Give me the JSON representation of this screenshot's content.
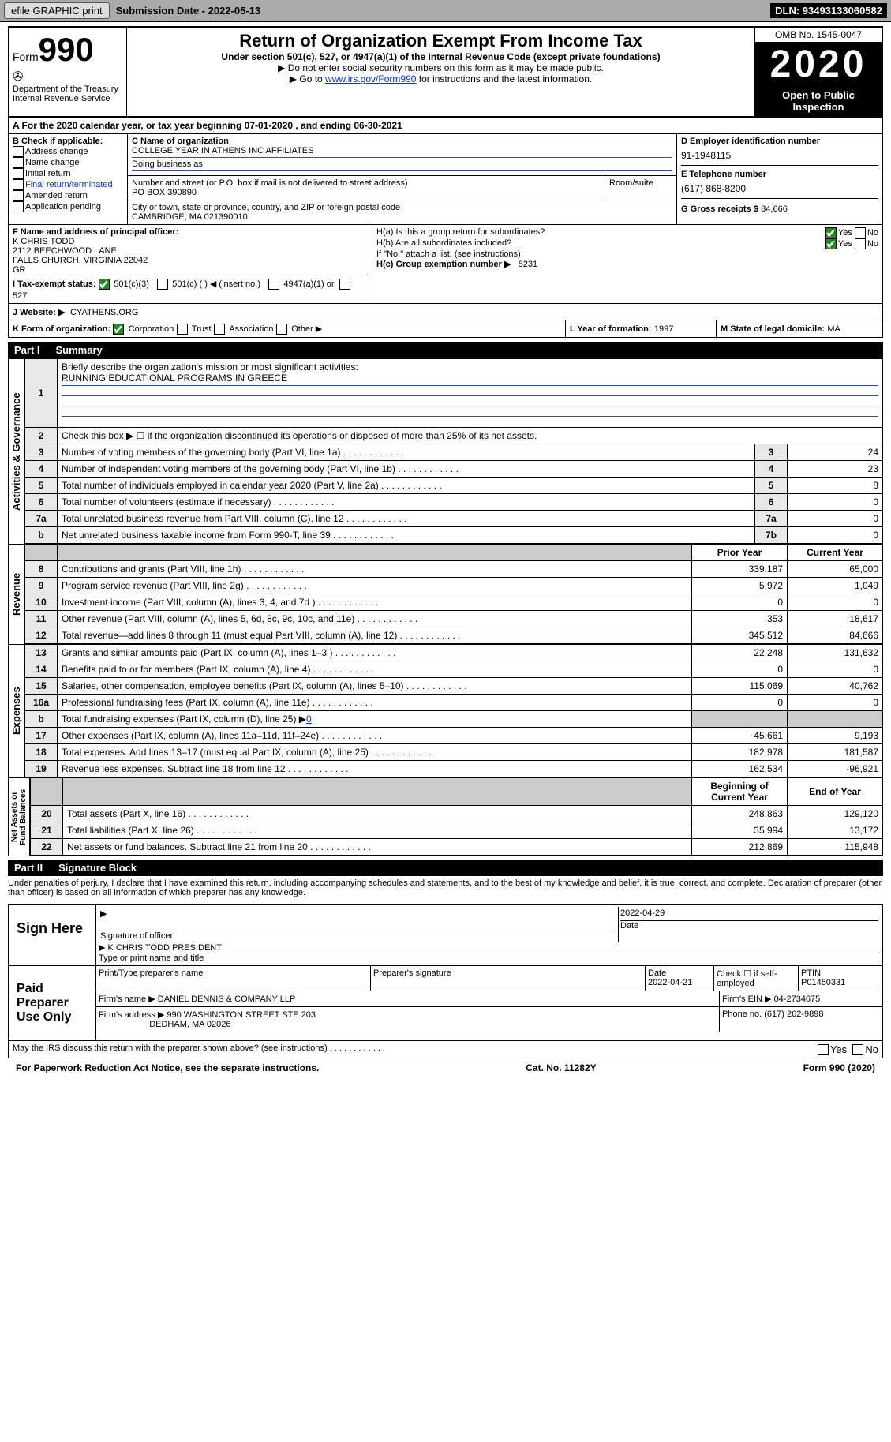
{
  "topbar": {
    "efile_btn": "efile GRAPHIC print",
    "sub_label": "Submission Date - 2022-05-13",
    "dln": "DLN: 93493133060582"
  },
  "header": {
    "form_word": "Form",
    "form_num": "990",
    "dept": "Department of the Treasury\nInternal Revenue Service",
    "title": "Return of Organization Exempt From Income Tax",
    "subtitle": "Under section 501(c), 527, or 4947(a)(1) of the Internal Revenue Code (except private foundations)",
    "note1": "▶ Do not enter social security numbers on this form as it may be made public.",
    "note2_prefix": "▶ Go to ",
    "note2_link": "www.irs.gov/Form990",
    "note2_suffix": " for instructions and the latest information.",
    "omb": "OMB No. 1545-0047",
    "year": "2020",
    "inspect": "Open to Public Inspection"
  },
  "line_a": "A For the 2020 calendar year, or tax year beginning 07-01-2020    , and ending 06-30-2021",
  "box_b": {
    "title": "B Check if applicable:",
    "items": [
      "Address change",
      "Name change",
      "Initial return",
      "Final return/terminated",
      "Amended return",
      "Application pending"
    ]
  },
  "box_c": {
    "label": "C Name of organization",
    "name": "COLLEGE YEAR IN ATHENS INC AFFILIATES",
    "dba_label": "Doing business as",
    "addr_label": "Number and street (or P.O. box if mail is not delivered to street address)",
    "room_label": "Room/suite",
    "addr": "PO BOX 390890",
    "city_label": "City or town, state or province, country, and ZIP or foreign postal code",
    "city": "CAMBRIDGE, MA  021390010"
  },
  "box_d": {
    "label": "D Employer identification number",
    "val": "91-1948115"
  },
  "box_e": {
    "label": "E Telephone number",
    "val": "(617) 868-8200"
  },
  "box_g": {
    "label": "G Gross receipts $",
    "val": "84,666"
  },
  "box_f": {
    "label": "F  Name and address of principal officer:",
    "name": "K CHRIS TODD",
    "addr1": "2112 BEECHWOOD LANE",
    "addr2": "FALLS CHURCH, VIRGINIA  22042",
    "addr3": "GR"
  },
  "box_h": {
    "a": "H(a)  Is this a group return for subordinates?",
    "b": "H(b)  Are all subordinates included?",
    "note": "If \"No,\" attach a list. (see instructions)",
    "c_label": "H(c)  Group exemption number ▶",
    "c_val": "8231"
  },
  "box_i": {
    "label": "I   Tax-exempt status:",
    "opts": [
      "501(c)(3)",
      "501(c) (  ) ◀ (insert no.)",
      "4947(a)(1) or",
      "527"
    ]
  },
  "box_j": {
    "label": "J   Website: ▶",
    "val": "CYATHENS.ORG"
  },
  "box_k": {
    "label": "K Form of organization:",
    "opts": [
      "Corporation",
      "Trust",
      "Association",
      "Other ▶"
    ]
  },
  "box_l": {
    "label": "L Year of formation:",
    "val": "1997"
  },
  "box_m": {
    "label": "M State of legal domicile:",
    "val": "MA"
  },
  "part1": {
    "num": "Part I",
    "title": "Summary"
  },
  "summary": {
    "q1": "Briefly describe the organization's mission or most significant activities:",
    "mission": "RUNNING EDUCATIONAL PROGRAMS IN GREECE",
    "q2": "Check this box ▶ ☐  if the organization discontinued its operations or disposed of more than 25% of its net assets.",
    "q3": "Number of voting members of the governing body (Part VI, line 1a)",
    "q4": "Number of independent voting members of the governing body (Part VI, line 1b)",
    "q5": "Total number of individuals employed in calendar year 2020 (Part V, line 2a)",
    "q6": "Total number of volunteers (estimate if necessary)",
    "q7a": "Total unrelated business revenue from Part VIII, column (C), line 12",
    "q7b": "Net unrelated business taxable income from Form 990-T, line 39",
    "v3": "24",
    "v4": "23",
    "v5": "8",
    "v6": "0",
    "v7a": "0",
    "v7b": "0",
    "prior_hdr": "Prior Year",
    "curr_hdr": "Current Year",
    "rows": [
      {
        "n": "8",
        "label": "Contributions and grants (Part VIII, line 1h)",
        "prior": "339,187",
        "curr": "65,000"
      },
      {
        "n": "9",
        "label": "Program service revenue (Part VIII, line 2g)",
        "prior": "5,972",
        "curr": "1,049"
      },
      {
        "n": "10",
        "label": "Investment income (Part VIII, column (A), lines 3, 4, and 7d )",
        "prior": "0",
        "curr": "0"
      },
      {
        "n": "11",
        "label": "Other revenue (Part VIII, column (A), lines 5, 6d, 8c, 9c, 10c, and 11e)",
        "prior": "353",
        "curr": "18,617"
      },
      {
        "n": "12",
        "label": "Total revenue—add lines 8 through 11 (must equal Part VIII, column (A), line 12)",
        "prior": "345,512",
        "curr": "84,666"
      },
      {
        "n": "13",
        "label": "Grants and similar amounts paid (Part IX, column (A), lines 1–3 )",
        "prior": "22,248",
        "curr": "131,632"
      },
      {
        "n": "14",
        "label": "Benefits paid to or for members (Part IX, column (A), line 4)",
        "prior": "0",
        "curr": "0"
      },
      {
        "n": "15",
        "label": "Salaries, other compensation, employee benefits (Part IX, column (A), lines 5–10)",
        "prior": "115,069",
        "curr": "40,762"
      },
      {
        "n": "16a",
        "label": "Professional fundraising fees (Part IX, column (A), line 11e)",
        "prior": "0",
        "curr": "0"
      }
    ],
    "row16b_label": "Total fundraising expenses (Part IX, column (D), line 25) ▶",
    "row16b_val": "0",
    "rows2": [
      {
        "n": "17",
        "label": "Other expenses (Part IX, column (A), lines 11a–11d, 11f–24e)",
        "prior": "45,661",
        "curr": "9,193"
      },
      {
        "n": "18",
        "label": "Total expenses. Add lines 13–17 (must equal Part IX, column (A), line 25)",
        "prior": "182,978",
        "curr": "181,587"
      },
      {
        "n": "19",
        "label": "Revenue less expenses. Subtract line 18 from line 12",
        "prior": "162,534",
        "curr": "-96,921"
      }
    ],
    "begin_hdr": "Beginning of Current Year",
    "end_hdr": "End of Year",
    "rows3": [
      {
        "n": "20",
        "label": "Total assets (Part X, line 16)",
        "prior": "248,863",
        "curr": "129,120"
      },
      {
        "n": "21",
        "label": "Total liabilities (Part X, line 26)",
        "prior": "35,994",
        "curr": "13,172"
      },
      {
        "n": "22",
        "label": "Net assets or fund balances. Subtract line 21 from line 20",
        "prior": "212,869",
        "curr": "115,948"
      }
    ]
  },
  "vert_labels": {
    "gov": "Activities & Governance",
    "rev": "Revenue",
    "exp": "Expenses",
    "net": "Net Assets or\nFund Balances"
  },
  "part2": {
    "num": "Part II",
    "title": "Signature Block"
  },
  "sig": {
    "penalties": "Under penalties of perjury, I declare that I have examined this return, including accompanying schedules and statements, and to the best of my knowledge and belief, it is true, correct, and complete. Declaration of preparer (other than officer) is based on all information of which preparer has any knowledge.",
    "sign_here": "Sign Here",
    "sig_officer": "Signature of officer",
    "date": "2022-04-29",
    "date_lbl": "Date",
    "officer_name": "K CHRIS TODD  PRESIDENT",
    "type_lbl": "Type or print name and title",
    "paid": "Paid Preparer Use Only",
    "prep_name_lbl": "Print/Type preparer's name",
    "prep_sig_lbl": "Preparer's signature",
    "prep_date": "2022-04-21",
    "check_lbl": "Check ☐ if self-employed",
    "ptin_lbl": "PTIN",
    "ptin": "P01450331",
    "firm_name_lbl": "Firm's name    ▶",
    "firm_name": "DANIEL DENNIS & COMPANY LLP",
    "firm_ein_lbl": "Firm's EIN ▶",
    "firm_ein": "04-2734675",
    "firm_addr_lbl": "Firm's address ▶",
    "firm_addr": "990 WASHINGTON STREET STE 203",
    "firm_city": "DEDHAM, MA  02026",
    "phone_lbl": "Phone no.",
    "phone": "(617) 262-9898",
    "discuss": "May the IRS discuss this return with the preparer shown above? (see instructions)"
  },
  "footer": {
    "left": "For Paperwork Reduction Act Notice, see the separate instructions.",
    "mid": "Cat. No. 11282Y",
    "right": "Form 990 (2020)"
  },
  "yes": "Yes",
  "no": "No"
}
